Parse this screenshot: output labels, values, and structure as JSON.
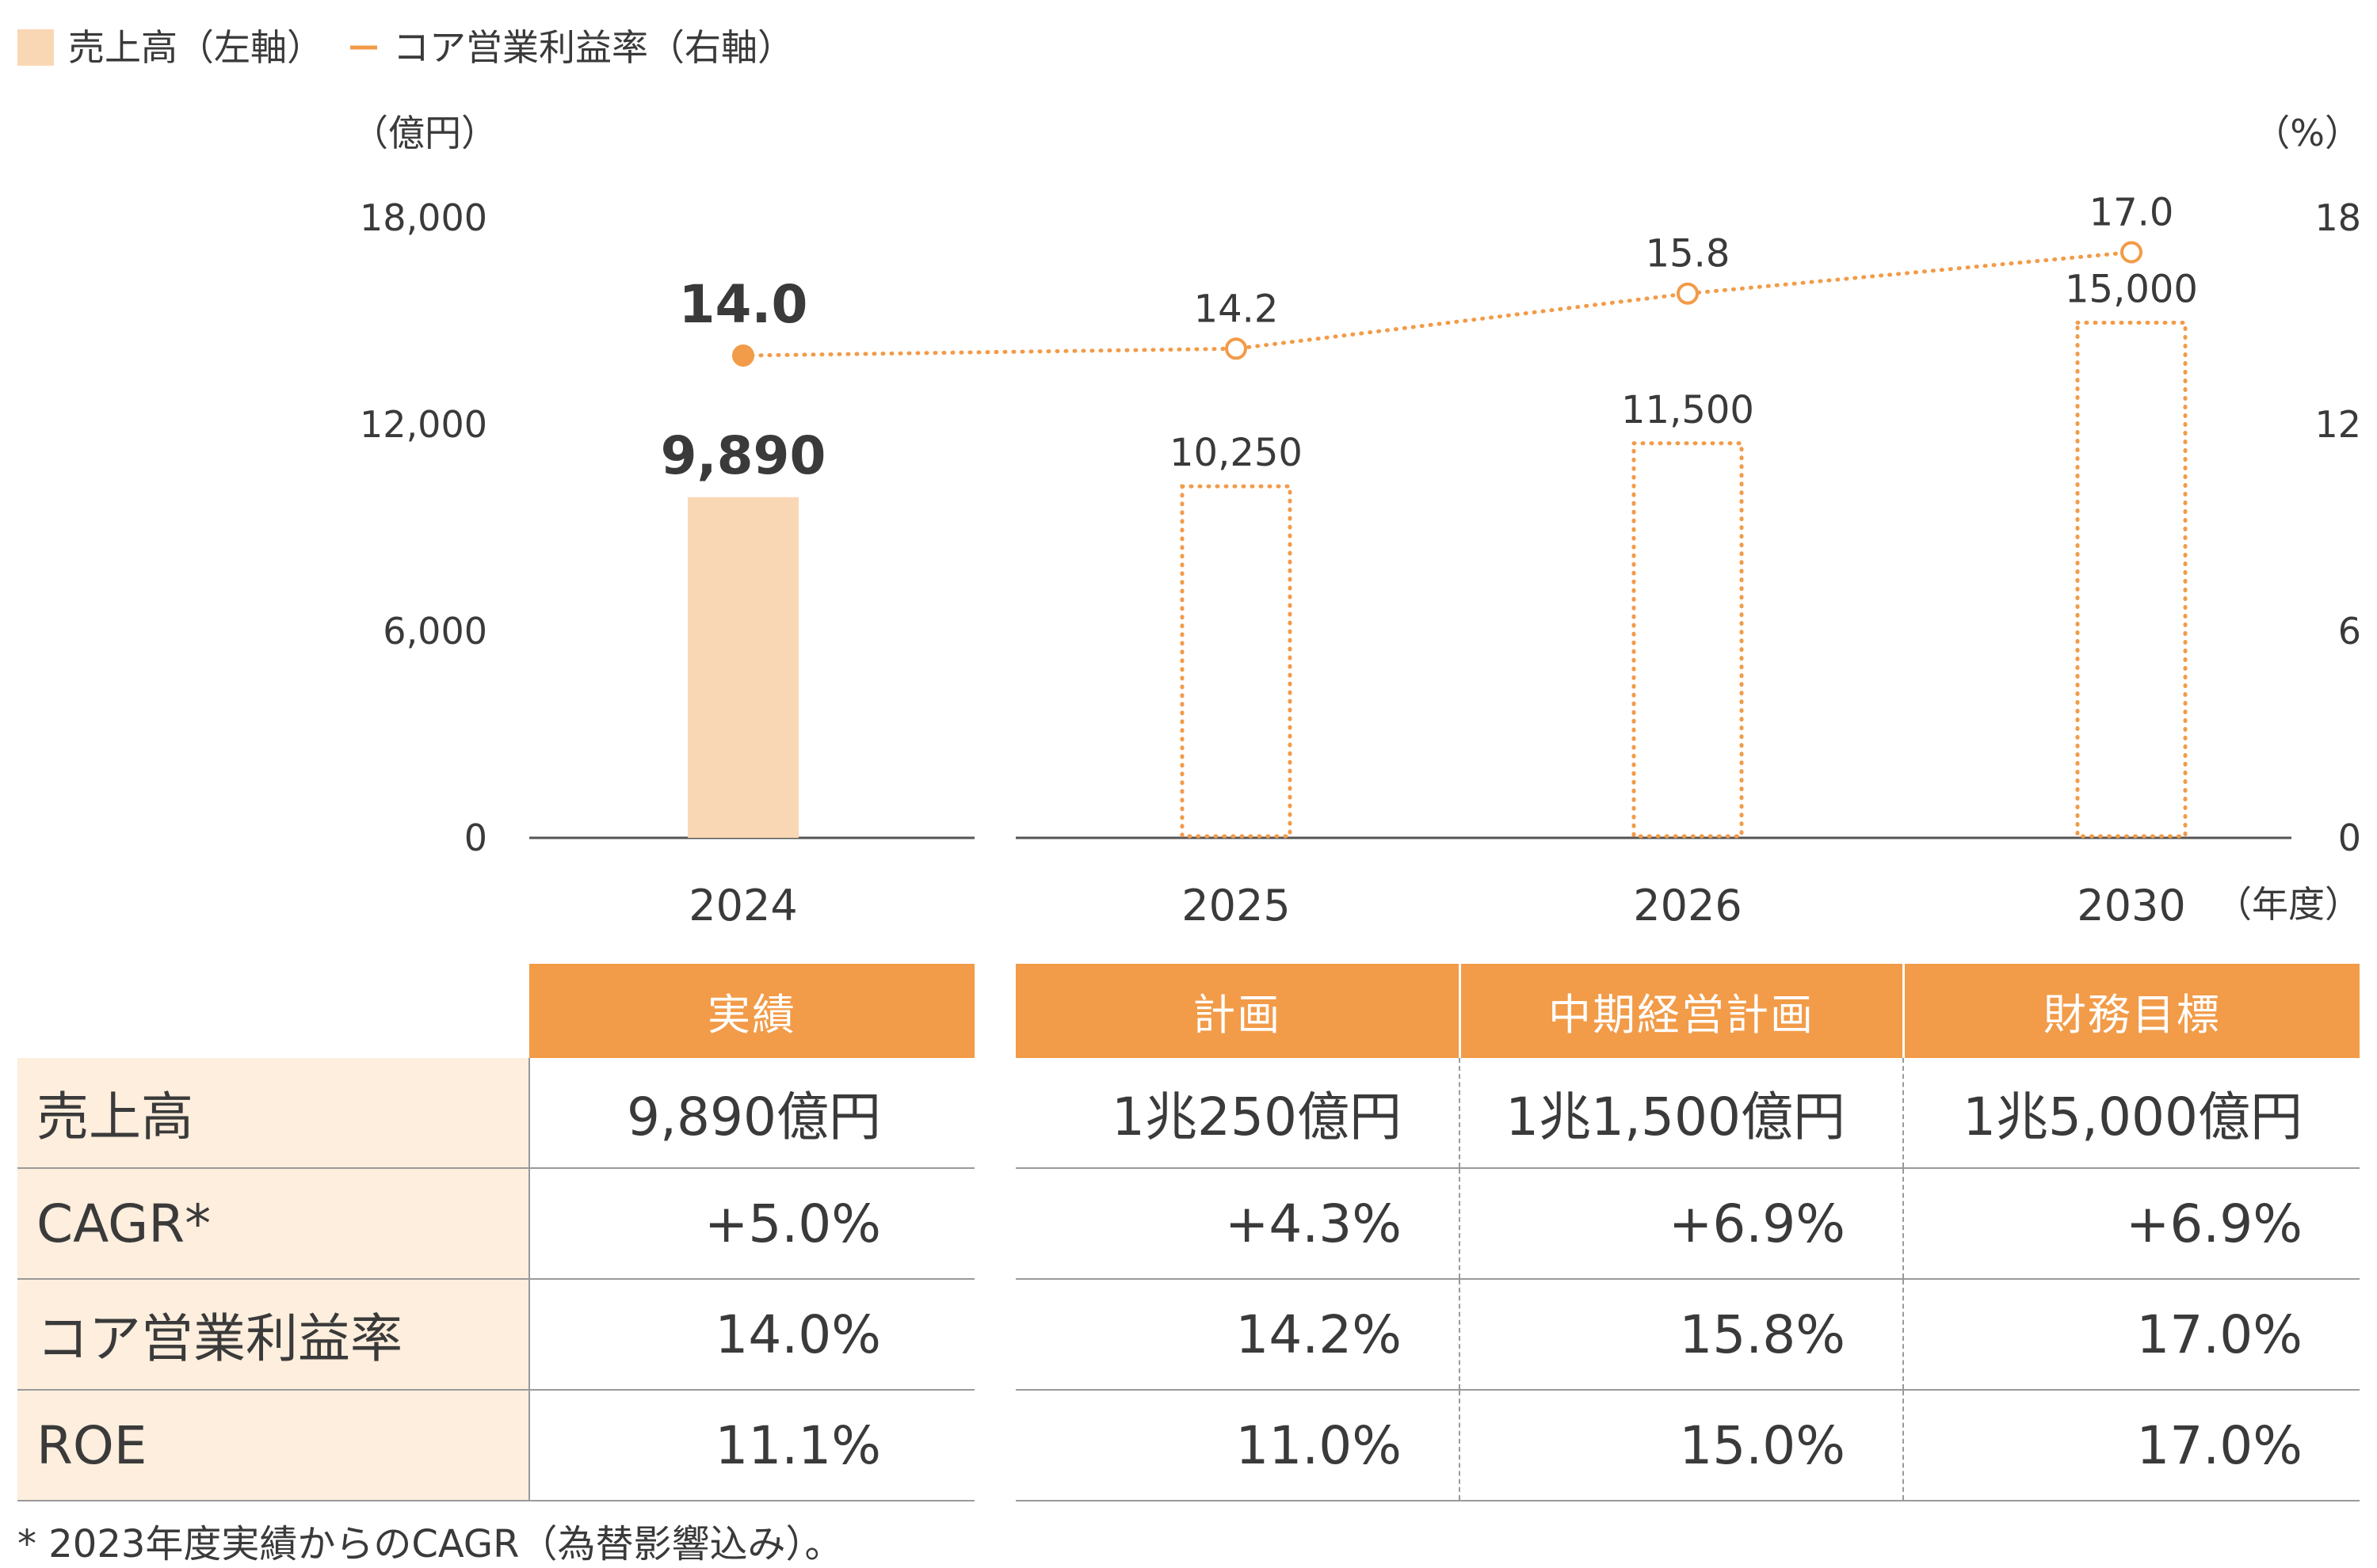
{
  "legend": {
    "bar_label": "売上高（左軸）",
    "line_label": "コア営業利益率（右軸）"
  },
  "axes": {
    "left_unit": "（億円）",
    "right_unit": "（%）",
    "x_unit": "（年度）"
  },
  "colors": {
    "accent": "#f29b48",
    "bar_fill": "#fad7b4",
    "label_bg": "#fdeedd",
    "text": "#3a3a3a"
  },
  "chart_data": {
    "type": "bar",
    "categories": [
      "2024",
      "2025",
      "2026",
      "2030"
    ],
    "series": [
      {
        "name": "売上高（左軸）",
        "axis": "left",
        "type": "bar",
        "values": [
          9890,
          10250,
          11500,
          15000
        ],
        "labels": [
          "9,890",
          "10,250",
          "11,500",
          "15,000"
        ],
        "style": [
          "solid",
          "dotted-outline",
          "dotted-outline",
          "dotted-outline"
        ]
      },
      {
        "name": "コア営業利益率（右軸）",
        "axis": "right",
        "type": "line",
        "values": [
          14.0,
          14.2,
          15.8,
          17.0
        ],
        "labels": [
          "14.0",
          "14.2",
          "15.8",
          "17.0"
        ],
        "style": "dotted"
      }
    ],
    "y_left": {
      "min": 0,
      "max": 18000,
      "ticks": [
        0,
        6000,
        12000,
        18000
      ],
      "tick_labels": [
        "0",
        "6,000",
        "12,000",
        "18,000"
      ]
    },
    "y_right": {
      "min": 0,
      "max": 18,
      "ticks": [
        0,
        6,
        12,
        18
      ],
      "tick_labels": [
        "0",
        "6",
        "12",
        "18"
      ]
    },
    "grid": false,
    "legend_position": "top-left"
  },
  "table": {
    "headers": [
      "実績",
      "計画",
      "中期経営計画",
      "財務目標"
    ],
    "rows": [
      {
        "label": "売上高",
        "values": [
          "9,890億円",
          "1兆250億円",
          "1兆1,500億円",
          "1兆5,000億円"
        ]
      },
      {
        "label": "CAGR*",
        "values": [
          "+5.0%",
          "+4.3%",
          "+6.9%",
          "+6.9%"
        ]
      },
      {
        "label": "コア営業利益率",
        "values": [
          "14.0%",
          "14.2%",
          "15.8%",
          "17.0%"
        ]
      },
      {
        "label": "ROE",
        "values": [
          "11.1%",
          "11.0%",
          "15.0%",
          "17.0%"
        ]
      }
    ]
  },
  "footnote": "* 2023年度実績からのCAGR（為替影響込み）。"
}
